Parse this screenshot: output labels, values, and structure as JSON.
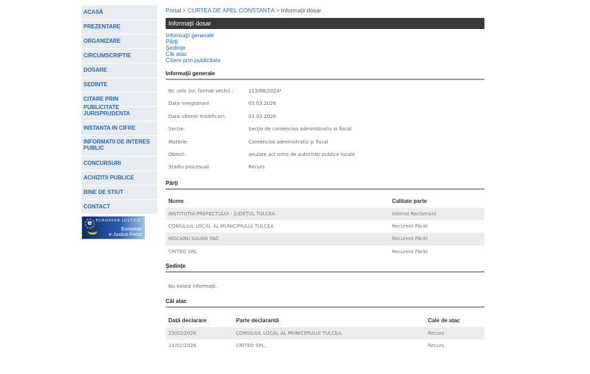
{
  "sidebar": {
    "items": [
      "ACASĂ",
      "PREZENTARE",
      "ORGANIZARE",
      "CIRCUMSCRIPTIE",
      "DOSARE",
      "SEDINTE",
      "CITARE PRIN PUBLICITATE",
      "JURISPRUDENTA",
      "INSTANTA IN CIFRE",
      "INFORMATII DE INTERES PUBLIC",
      "CONCURSURI",
      "ACHIZITII PUBLICE",
      "BINE DE STIUT",
      "CONTACT"
    ],
    "banner": {
      "top": "EUROPEAN JUSTICE",
      "line1": "European",
      "line2": "e-Justice Portal"
    }
  },
  "breadcrumb": {
    "portal": "Portal",
    "sep": ">",
    "court": "CURTEA DE APEL CONSTANŢA",
    "current": "Informaţii dosar"
  },
  "title": "Informaţii dosar",
  "toc": [
    "Informaţii generale",
    "Părţi",
    "Şedinţe",
    "Căi atac",
    "Citare prin publicitate"
  ],
  "general": {
    "heading": "Informaţii generale",
    "rows": [
      {
        "k": "Nr. unic (nr. format vechi) :",
        "v": "113/88/2024*"
      },
      {
        "k": "Data inregistrarii",
        "v": "03.03.2026"
      },
      {
        "k": "Data ultimei modificari:",
        "v": "03.03.2026"
      },
      {
        "k": "Sectie:",
        "v": "Secţia de contencios administrativ si fiscal"
      },
      {
        "k": "Materie:",
        "v": "Contencios administrativ şi fiscal"
      },
      {
        "k": "Obiect:",
        "v": "anulare act emis de autorităţi publice locale"
      },
      {
        "k": "Stadiu procesual:",
        "v": "Recurs"
      }
    ]
  },
  "parti": {
    "heading": "Părţi",
    "columns": [
      "Nume",
      "Calitate parte"
    ],
    "rows": [
      [
        "INSTITUŢIA PREFECTULUI - JUDEŢUL TULCEA",
        "Intimat Reclamant"
      ],
      [
        "CONSILIUL LOCAL AL MUNICIPIULUI TULCEA",
        "Recurent Pârât"
      ],
      [
        "MOCANU IULIAN SNC",
        "Recurent Pârât"
      ],
      [
        "CRITEO SRL",
        "Recurent Pârât"
      ]
    ]
  },
  "sedinte": {
    "heading": "Şedinţe",
    "empty": "Nu există informaţii."
  },
  "cai": {
    "heading": "Căi atac",
    "columns": [
      "Dată declarare",
      "Parte declarantă",
      "Cale de atac"
    ],
    "rows": [
      [
        "23/02/2026",
        "CONSILIUL LOCAL AL MUNICIPIULUI TULCEA,",
        "Recurs"
      ],
      [
        "24/02/2026",
        "CRITEO SRL,",
        "Recurs"
      ]
    ]
  }
}
